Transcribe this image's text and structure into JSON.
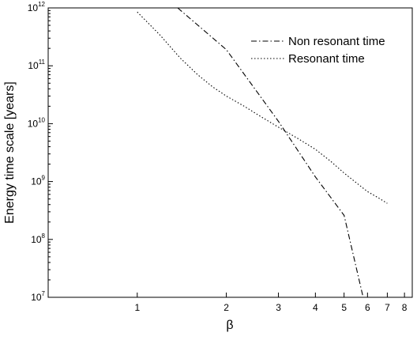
{
  "chart_data": {
    "type": "line",
    "title": "",
    "xlabel": "β",
    "ylabel": "Energy time scale [years]",
    "x_scale": "log",
    "y_scale": "log",
    "xlim": [
      0.5,
      8.5
    ],
    "ylim": [
      10000000.0,
      1000000000000.0
    ],
    "x_ticks": [
      {
        "value": 1,
        "label": "1"
      },
      {
        "value": 2,
        "label": "2"
      },
      {
        "value": 3,
        "label": "3"
      },
      {
        "value": 4,
        "label": "4"
      },
      {
        "value": 5,
        "label": "5"
      },
      {
        "value": 6,
        "label": "6"
      },
      {
        "value": 7,
        "label": "7"
      },
      {
        "value": 8,
        "label": "8"
      }
    ],
    "y_ticks": [
      {
        "value": 10000000.0,
        "base": "10",
        "exp": "7"
      },
      {
        "value": 100000000.0,
        "base": "10",
        "exp": "8"
      },
      {
        "value": 1000000000.0,
        "base": "10",
        "exp": "9"
      },
      {
        "value": 10000000000.0,
        "base": "10",
        "exp": "10"
      },
      {
        "value": 100000000000.0,
        "base": "10",
        "exp": "11"
      },
      {
        "value": 1000000000000.0,
        "base": "10",
        "exp": "12"
      }
    ],
    "grid": false,
    "legend_position": "top-right",
    "series": [
      {
        "name": "Non resonant time",
        "style": "dash-dot",
        "x": [
          1.37,
          2.0,
          3.0,
          4.0,
          5.0,
          5.8
        ],
        "y": [
          1000000000000.0,
          190000000000.0,
          11000000000.0,
          1200000000.0,
          260000000.0,
          10000000.0
        ]
      },
      {
        "name": "Resonant time",
        "style": "dotted",
        "x": [
          1.0,
          1.1,
          1.2,
          1.4,
          1.6,
          1.8,
          2.0,
          2.3,
          2.6,
          3.0,
          3.5,
          4.0,
          4.5,
          5.0,
          5.5,
          6.0,
          6.5,
          7.0
        ],
        "y": [
          850000000000.0,
          520000000000.0,
          330000000000.0,
          135000000000.0,
          70000000000.0,
          43000000000.0,
          30000000000.0,
          20000000000.0,
          13500000000.0,
          8700000000.0,
          5500000000.0,
          3600000000.0,
          2250000000.0,
          1400000000.0,
          950000000.0,
          670000000.0,
          530000000.0,
          420000000.0
        ]
      }
    ]
  }
}
